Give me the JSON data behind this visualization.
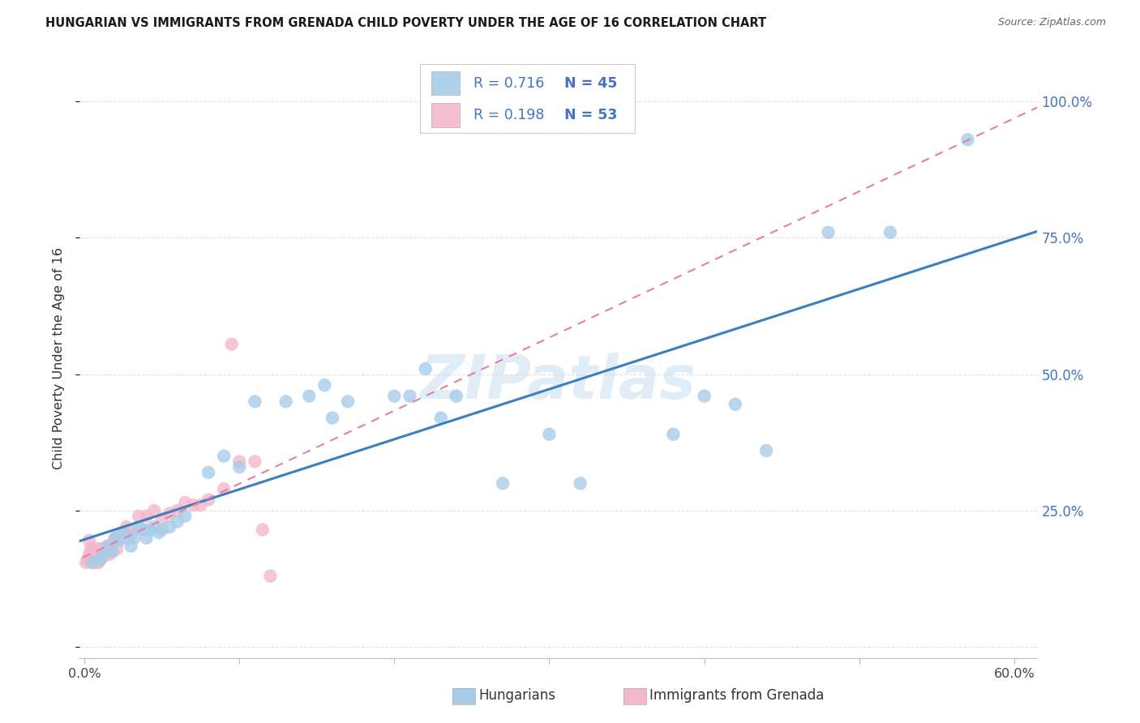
{
  "title": "HUNGARIAN VS IMMIGRANTS FROM GRENADA CHILD POVERTY UNDER THE AGE OF 16 CORRELATION CHART",
  "source": "Source: ZipAtlas.com",
  "ylabel": "Child Poverty Under the Age of 16",
  "xlim_min": -0.003,
  "xlim_max": 0.615,
  "ylim_min": -0.02,
  "ylim_max": 1.08,
  "blue_R": 0.716,
  "blue_N": 45,
  "pink_R": 0.198,
  "pink_N": 53,
  "blue_color": "#a8cce8",
  "pink_color": "#f4b8cb",
  "blue_line_color": "#3a7fc1",
  "pink_line_color": "#e87ea0",
  "right_tick_color": "#4472c4",
  "watermark": "ZIPatlas",
  "watermark_color": "#c8ddf0",
  "grid_color": "#e0e0e0",
  "background_color": "#ffffff",
  "title_fontsize": 10.5,
  "legend_text_color": "#4472c4",
  "legend_blue_label": "Hungarians",
  "legend_pink_label": "Immigrants from Grenada",
  "blue_x": [
    0.005,
    0.01,
    0.012,
    0.015,
    0.018,
    0.02,
    0.022,
    0.025,
    0.028,
    0.03,
    0.032,
    0.035,
    0.038,
    0.04,
    0.042,
    0.045,
    0.048,
    0.05,
    0.055,
    0.06,
    0.065,
    0.08,
    0.09,
    0.1,
    0.11,
    0.13,
    0.145,
    0.155,
    0.16,
    0.17,
    0.2,
    0.21,
    0.22,
    0.23,
    0.24,
    0.27,
    0.3,
    0.32,
    0.38,
    0.4,
    0.42,
    0.44,
    0.48,
    0.52,
    0.57
  ],
  "blue_y": [
    0.155,
    0.16,
    0.17,
    0.185,
    0.175,
    0.2,
    0.195,
    0.21,
    0.2,
    0.185,
    0.2,
    0.22,
    0.215,
    0.2,
    0.215,
    0.22,
    0.21,
    0.215,
    0.22,
    0.23,
    0.24,
    0.32,
    0.35,
    0.33,
    0.45,
    0.45,
    0.46,
    0.48,
    0.42,
    0.45,
    0.46,
    0.46,
    0.51,
    0.42,
    0.46,
    0.3,
    0.39,
    0.3,
    0.39,
    0.46,
    0.445,
    0.36,
    0.76,
    0.76,
    0.93
  ],
  "pink_x": [
    0.001,
    0.002,
    0.003,
    0.003,
    0.004,
    0.004,
    0.005,
    0.005,
    0.005,
    0.006,
    0.006,
    0.007,
    0.007,
    0.008,
    0.008,
    0.009,
    0.009,
    0.01,
    0.01,
    0.011,
    0.012,
    0.012,
    0.013,
    0.014,
    0.015,
    0.016,
    0.017,
    0.018,
    0.019,
    0.02,
    0.021,
    0.022,
    0.023,
    0.025,
    0.027,
    0.03,
    0.032,
    0.035,
    0.04,
    0.045,
    0.05,
    0.055,
    0.06,
    0.065,
    0.07,
    0.075,
    0.08,
    0.09,
    0.095,
    0.1,
    0.11,
    0.115,
    0.12
  ],
  "pink_y": [
    0.155,
    0.16,
    0.17,
    0.195,
    0.165,
    0.18,
    0.155,
    0.165,
    0.175,
    0.16,
    0.175,
    0.165,
    0.18,
    0.155,
    0.17,
    0.155,
    0.175,
    0.165,
    0.18,
    0.175,
    0.165,
    0.18,
    0.175,
    0.175,
    0.185,
    0.17,
    0.185,
    0.175,
    0.195,
    0.2,
    0.18,
    0.195,
    0.2,
    0.21,
    0.22,
    0.21,
    0.215,
    0.24,
    0.24,
    0.25,
    0.235,
    0.245,
    0.25,
    0.265,
    0.26,
    0.26,
    0.27,
    0.29,
    0.555,
    0.34,
    0.34,
    0.215,
    0.13
  ]
}
